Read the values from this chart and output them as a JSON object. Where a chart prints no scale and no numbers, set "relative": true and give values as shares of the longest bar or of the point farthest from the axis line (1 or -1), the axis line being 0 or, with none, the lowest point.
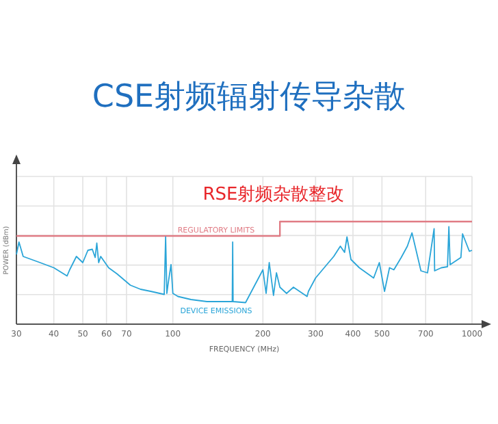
{
  "chart_data": {
    "type": "line",
    "title": "CSE射频辐射传导杂散",
    "xlabel": "FREQUENCY (MHz)",
    "ylabel": "POWER (dBm)",
    "annotations": [
      "RSE射频杂散整改"
    ],
    "relative": true,
    "log": "x",
    "grid": true,
    "xlim": [
      30,
      1000
    ],
    "xticks": [
      30,
      40,
      50,
      60,
      70,
      100,
      200,
      300,
      400,
      500,
      700,
      1000
    ],
    "series": [
      {
        "name": "REGULATORY LIMITS",
        "type": "step",
        "color": "#e07b84",
        "x": [
          30,
          228,
          228,
          1000
        ],
        "values": [
          0.86,
          0.86,
          1.0,
          1.0
        ]
      },
      {
        "name": "DEVICE EMISSIONS",
        "type": "line",
        "color": "#2aa5d8",
        "x": [
          30,
          30.6,
          31.6,
          36,
          40,
          44.3,
          45.2,
          47.6,
          50,
          52,
          53.8,
          55,
          55.7,
          56.5,
          57.4,
          61,
          65.1,
          72.1,
          78,
          84.3,
          93.6,
          94.6,
          95.5,
          96.5,
          98.6,
          100,
          104,
          115,
          130,
          145,
          158,
          158.5,
          159,
          175,
          200,
          205,
          210,
          217,
          222,
          228,
          240,
          253,
          281,
          284,
          300,
          327,
          345,
          363,
          375,
          382,
          394,
          420,
          469,
          490,
          510,
          530,
          548,
          580,
          608,
          630,
          675,
          710,
          747,
          750,
          790,
          828,
          837,
          845,
          918,
          930,
          980,
          1000
        ],
        "values": [
          0.68,
          0.8,
          0.66,
          0.6,
          0.55,
          0.47,
          0.53,
          0.66,
          0.6,
          0.72,
          0.73,
          0.65,
          0.79,
          0.6,
          0.66,
          0.55,
          0.49,
          0.38,
          0.34,
          0.32,
          0.29,
          0.85,
          0.3,
          0.4,
          0.58,
          0.3,
          0.27,
          0.24,
          0.22,
          0.22,
          0.22,
          0.8,
          0.22,
          0.21,
          0.53,
          0.3,
          0.6,
          0.28,
          0.5,
          0.36,
          0.3,
          0.36,
          0.27,
          0.32,
          0.45,
          0.58,
          0.66,
          0.76,
          0.7,
          0.85,
          0.63,
          0.55,
          0.45,
          0.6,
          0.32,
          0.55,
          0.53,
          0.65,
          0.76,
          0.89,
          0.52,
          0.5,
          0.93,
          0.52,
          0.55,
          0.56,
          0.95,
          0.58,
          0.65,
          0.88,
          0.71,
          0.72
        ]
      }
    ]
  }
}
